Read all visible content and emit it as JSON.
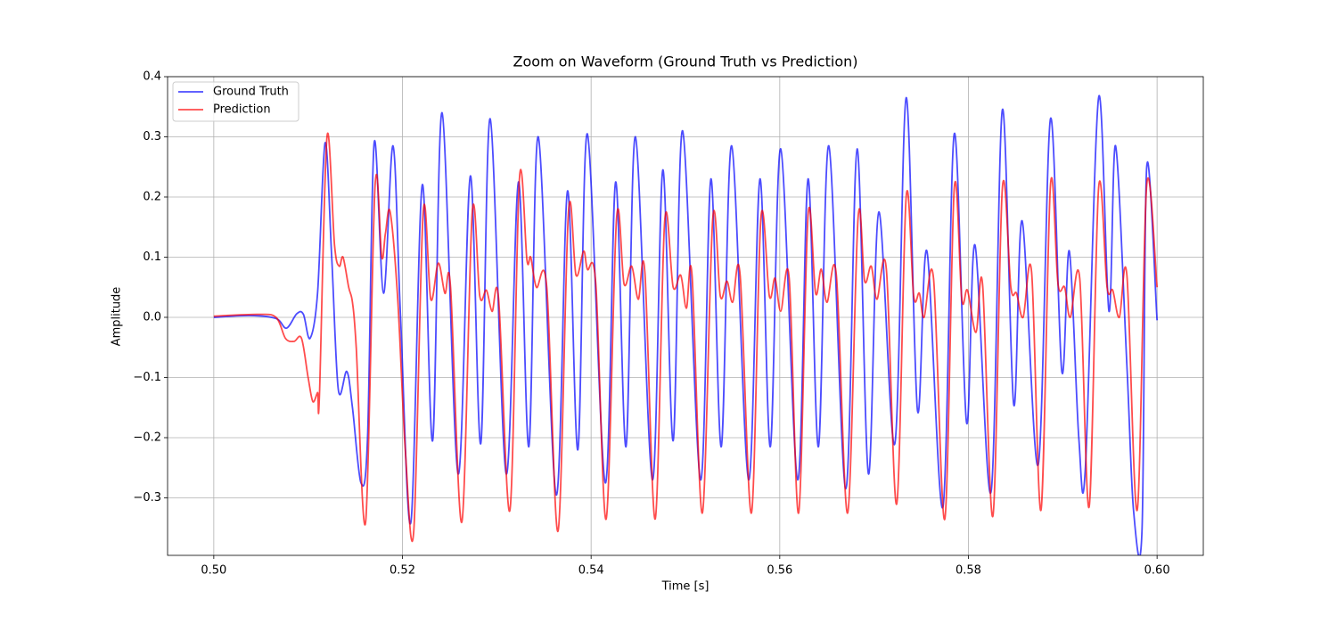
{
  "chart_data": {
    "type": "line",
    "title": "Zoom on Waveform (Ground Truth vs Prediction)",
    "x_label": "Time [s]",
    "y_label": "Amplitude",
    "xlim": [
      0.4951,
      0.6049
    ],
    "ylim": [
      -0.3956,
      0.4
    ],
    "xticks": [
      {
        "value": 0.5,
        "label": "0.50"
      },
      {
        "value": 0.52,
        "label": "0.52"
      },
      {
        "value": 0.54,
        "label": "0.54"
      },
      {
        "value": 0.56,
        "label": "0.56"
      },
      {
        "value": 0.58,
        "label": "0.58"
      },
      {
        "value": 0.6,
        "label": "0.60"
      }
    ],
    "yticks": [
      {
        "value": -0.3,
        "label": "−0.3"
      },
      {
        "value": -0.2,
        "label": "−0.2"
      },
      {
        "value": -0.1,
        "label": "−0.1"
      },
      {
        "value": 0,
        "label": "0.0"
      },
      0.1,
      0.2,
      0.3,
      0.4
    ],
    "grid": true,
    "legend": "upper-left",
    "alpha": 0.7,
    "series": [
      {
        "name": "Ground Truth",
        "color": "#0000ff",
        "x": [
          0.5,
          0.5038,
          0.5066,
          0.5077,
          0.5088,
          0.5095,
          0.5102,
          0.511,
          0.5118,
          0.5125,
          0.5132,
          0.5141,
          0.5147,
          0.5156,
          0.5163,
          0.517,
          0.518,
          0.519,
          0.5198,
          0.5209,
          0.5221,
          0.5232,
          0.5242,
          0.5259,
          0.5272,
          0.5283,
          0.5293,
          0.531,
          0.5323,
          0.5334,
          0.5344,
          0.5363,
          0.5375,
          0.5386,
          0.5396,
          0.5415,
          0.5426,
          0.5437,
          0.5447,
          0.5465,
          0.5476,
          0.5487,
          0.5497,
          0.5516,
          0.5527,
          0.5538,
          0.5549,
          0.5567,
          0.5579,
          0.559,
          0.5601,
          0.5619,
          0.563,
          0.5641,
          0.5652,
          0.567,
          0.5682,
          0.5694,
          0.5705,
          0.5722,
          0.5734,
          0.5746,
          0.5756,
          0.5773,
          0.5785,
          0.5798,
          0.5807,
          0.5824,
          0.5836,
          0.5848,
          0.5857,
          0.5874,
          0.5887,
          0.5899,
          0.5907,
          0.5917,
          0.5924,
          0.5938,
          0.5949,
          0.5956,
          0.5968,
          0.5975,
          0.5984,
          0.5989,
          0.6
        ],
        "values": [
          0.0,
          0.003,
          -0.002,
          -0.018,
          0.006,
          0.005,
          -0.035,
          0.04,
          0.29,
          0.1,
          -0.12,
          -0.09,
          -0.15,
          -0.275,
          -0.2,
          0.29,
          0.04,
          0.285,
          0.0,
          -0.34,
          0.22,
          -0.205,
          0.34,
          -0.26,
          0.235,
          -0.21,
          0.33,
          -0.26,
          0.225,
          -0.215,
          0.3,
          -0.295,
          0.21,
          -0.22,
          0.305,
          -0.275,
          0.225,
          -0.215,
          0.3,
          -0.27,
          0.245,
          -0.205,
          0.31,
          -0.27,
          0.23,
          -0.215,
          0.285,
          -0.27,
          0.23,
          -0.215,
          0.28,
          -0.27,
          0.23,
          -0.215,
          0.285,
          -0.285,
          0.28,
          -0.26,
          0.175,
          -0.21,
          0.365,
          -0.155,
          0.11,
          -0.315,
          0.305,
          -0.175,
          0.12,
          -0.29,
          0.345,
          -0.145,
          0.16,
          -0.245,
          0.33,
          -0.09,
          0.11,
          -0.2,
          -0.25,
          0.365,
          0.01,
          0.285,
          -0.08,
          -0.32,
          -0.355,
          0.25,
          -0.005
        ]
      },
      {
        "name": "Prediction",
        "color": "#ff0000",
        "x": [
          0.5,
          0.5047,
          0.5066,
          0.5076,
          0.5085,
          0.5093,
          0.51,
          0.5105,
          0.511,
          0.5112,
          0.512,
          0.5128,
          0.5133,
          0.5137,
          0.5143,
          0.5147,
          0.5151,
          0.5161,
          0.5171,
          0.5178,
          0.5182,
          0.5187,
          0.5195,
          0.5203,
          0.5212,
          0.5222,
          0.523,
          0.5238,
          0.5245,
          0.5251,
          0.5263,
          0.5274,
          0.5282,
          0.5289,
          0.5295,
          0.5302,
          0.5314,
          0.5324,
          0.5332,
          0.5336,
          0.5342,
          0.5353,
          0.5365,
          0.5376,
          0.5384,
          0.5392,
          0.5396,
          0.5405,
          0.5416,
          0.5427,
          0.5435,
          0.5443,
          0.545,
          0.5457,
          0.5468,
          0.5478,
          0.5487,
          0.5495,
          0.5501,
          0.5507,
          0.5518,
          0.5529,
          0.5537,
          0.5544,
          0.555,
          0.5558,
          0.557,
          0.558,
          0.5589,
          0.5595,
          0.5601,
          0.561,
          0.562,
          0.563,
          0.5638,
          0.5644,
          0.565,
          0.566,
          0.5672,
          0.5683,
          0.569,
          0.5697,
          0.5703,
          0.5713,
          0.5724,
          0.5734,
          0.5742,
          0.5748,
          0.5753,
          0.5763,
          0.5775,
          0.5785,
          0.5793,
          0.5799,
          0.5808,
          0.5815,
          0.5826,
          0.5836,
          0.5845,
          0.5851,
          0.5858,
          0.5867,
          0.5877,
          0.5887,
          0.5895,
          0.5902,
          0.5908,
          0.5918,
          0.5928,
          0.5938,
          0.5947,
          0.5953,
          0.596,
          0.5968,
          0.5979,
          0.5989,
          0.6
        ],
        "values": [
          0.002,
          0.005,
          0.0,
          -0.035,
          -0.04,
          -0.035,
          -0.1,
          -0.14,
          -0.125,
          -0.13,
          0.3,
          0.12,
          0.085,
          0.1,
          0.05,
          0.025,
          -0.05,
          -0.34,
          0.22,
          0.1,
          0.14,
          0.175,
          0.03,
          -0.22,
          -0.355,
          0.175,
          0.03,
          0.09,
          0.04,
          0.05,
          -0.34,
          0.175,
          0.035,
          0.045,
          0.01,
          0.03,
          -0.32,
          0.23,
          0.095,
          0.1,
          0.05,
          0.05,
          -0.355,
          0.175,
          0.07,
          0.11,
          0.08,
          0.055,
          -0.335,
          0.165,
          0.055,
          0.085,
          0.03,
          0.075,
          -0.335,
          0.16,
          0.05,
          0.07,
          0.015,
          0.07,
          -0.325,
          0.165,
          0.035,
          0.06,
          0.025,
          0.07,
          -0.325,
          0.165,
          0.035,
          0.065,
          0.01,
          0.065,
          -0.325,
          0.17,
          0.04,
          0.08,
          0.025,
          0.07,
          -0.325,
          0.165,
          0.06,
          0.085,
          0.03,
          0.08,
          -0.31,
          0.2,
          0.035,
          0.04,
          0.0,
          0.065,
          -0.335,
          0.215,
          0.03,
          0.045,
          -0.025,
          0.055,
          -0.33,
          0.215,
          0.05,
          0.04,
          0.0,
          0.075,
          -0.32,
          0.22,
          0.055,
          0.05,
          0.0,
          0.065,
          -0.315,
          0.215,
          0.05,
          0.045,
          0.0,
          0.07,
          -0.32,
          0.22,
          0.05
        ]
      }
    ]
  }
}
